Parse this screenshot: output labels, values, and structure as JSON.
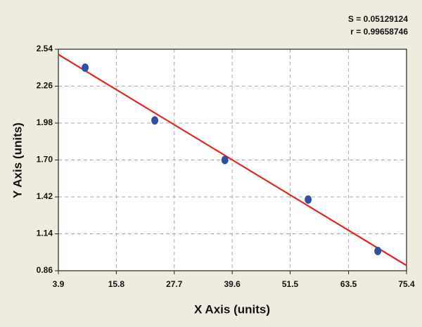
{
  "chart_data": {
    "type": "scatter",
    "x_label": "X Axis (units)",
    "y_label": "Y Axis (units)",
    "annotations": [
      "S = 0.05129124",
      "r = 0.99658746"
    ],
    "series": [
      {
        "color": "#2f4fa8",
        "x": [
          9.4,
          23.7,
          38.1,
          55.2,
          69.5
        ],
        "values": [
          2.4,
          2.0,
          1.7,
          1.4,
          1.01
        ]
      }
    ],
    "fit": {
      "color": "#e8251f",
      "x": [
        3.9,
        75.4
      ],
      "values": [
        2.5,
        0.9
      ]
    },
    "xlim": [
      3.9,
      75.4
    ],
    "xticks": [
      3.9,
      15.8,
      27.7,
      39.6,
      51.5,
      63.5,
      75.4
    ],
    "ylim": [
      0.86,
      2.54
    ],
    "yticks": [
      0.86,
      1.14,
      1.42,
      {
        "value": 1.7,
        "label": "1.70"
      },
      1.98,
      2.26,
      2.54
    ],
    "grid": true
  }
}
